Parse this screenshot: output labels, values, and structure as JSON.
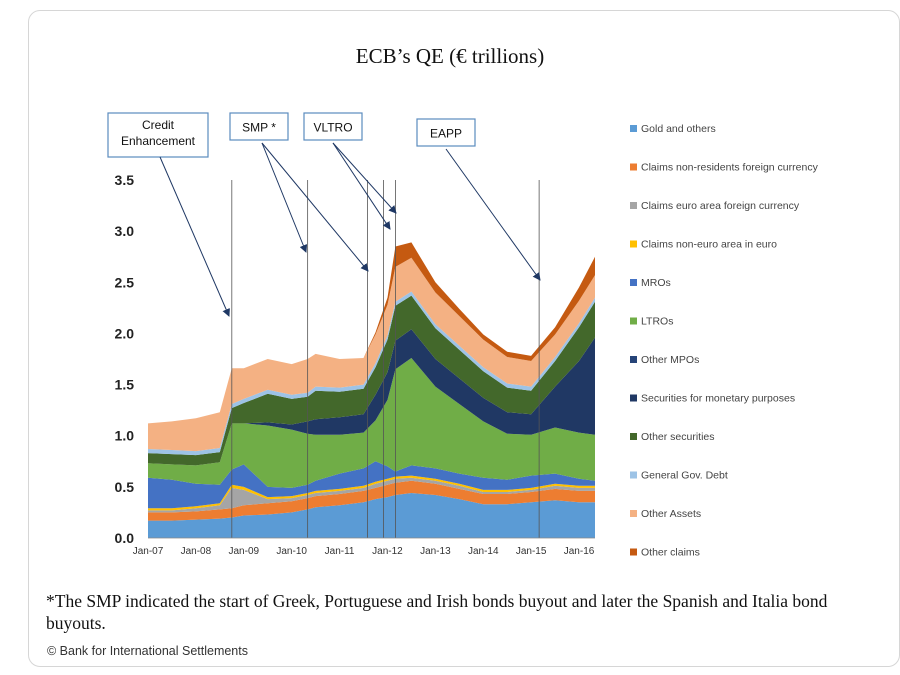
{
  "title": "ECB’s QE (€ trillions)",
  "footnote": "*The SMP indicated the start of Greek, Portuguese and Irish bonds buyout and later the Spanish and Italia bond buyouts.",
  "credit": "© Bank for International Settlements",
  "chart_data": {
    "type": "area",
    "stacked": true,
    "title": "ECB’s QE (€ trillions)",
    "xlabel": "",
    "ylabel": "",
    "ylim": [
      0,
      3.5
    ],
    "xlim": [
      "2007-01",
      "2016-05"
    ],
    "grid": false,
    "legend_position": "right",
    "y_ticks": [
      "0.0",
      "0.5",
      "1.0",
      "1.5",
      "2.0",
      "2.5",
      "3.0",
      "3.5"
    ],
    "x_ticks": [
      "Jan-07",
      "Jan-08",
      "Jan-09",
      "Jan-10",
      "Jan-11",
      "Jan-12",
      "Jan-13",
      "Jan-14",
      "Jan-15",
      "Jan-16"
    ],
    "x": [
      "2007-01",
      "2007-07",
      "2008-01",
      "2008-07",
      "2008-10",
      "2009-01",
      "2009-07",
      "2010-01",
      "2010-05",
      "2010-07",
      "2011-01",
      "2011-07",
      "2011-10",
      "2012-01",
      "2012-03",
      "2012-07",
      "2013-01",
      "2013-07",
      "2014-01",
      "2014-07",
      "2015-01",
      "2015-07",
      "2016-01",
      "2016-05"
    ],
    "series": [
      {
        "name": "Gold and others",
        "color": "#5b9bd5",
        "values": [
          0.17,
          0.17,
          0.18,
          0.19,
          0.2,
          0.22,
          0.23,
          0.25,
          0.28,
          0.3,
          0.32,
          0.35,
          0.38,
          0.4,
          0.42,
          0.44,
          0.42,
          0.38,
          0.33,
          0.33,
          0.35,
          0.37,
          0.35,
          0.35
        ]
      },
      {
        "name": "Claims non-residents foreign currency",
        "color": "#ed7d31",
        "values": [
          0.08,
          0.08,
          0.08,
          0.09,
          0.09,
          0.1,
          0.11,
          0.11,
          0.11,
          0.11,
          0.11,
          0.11,
          0.11,
          0.12,
          0.12,
          0.12,
          0.11,
          0.1,
          0.1,
          0.1,
          0.1,
          0.11,
          0.11,
          0.11
        ]
      },
      {
        "name": "Claims euro area foreign currency",
        "color": "#a5a5a5",
        "values": [
          0.02,
          0.02,
          0.03,
          0.04,
          0.2,
          0.15,
          0.04,
          0.03,
          0.03,
          0.03,
          0.03,
          0.03,
          0.04,
          0.04,
          0.04,
          0.03,
          0.03,
          0.03,
          0.02,
          0.02,
          0.02,
          0.03,
          0.03,
          0.03
        ]
      },
      {
        "name": "Claims non-euro area in euro",
        "color": "#ffc000",
        "values": [
          0.02,
          0.02,
          0.02,
          0.02,
          0.03,
          0.03,
          0.02,
          0.02,
          0.02,
          0.02,
          0.02,
          0.02,
          0.02,
          0.02,
          0.02,
          0.02,
          0.02,
          0.02,
          0.02,
          0.02,
          0.02,
          0.02,
          0.02,
          0.02
        ]
      },
      {
        "name": "MROs",
        "color": "#4472c4",
        "values": [
          0.3,
          0.28,
          0.22,
          0.18,
          0.15,
          0.22,
          0.1,
          0.08,
          0.08,
          0.1,
          0.15,
          0.17,
          0.2,
          0.12,
          0.05,
          0.1,
          0.1,
          0.1,
          0.12,
          0.1,
          0.12,
          0.1,
          0.07,
          0.05
        ]
      },
      {
        "name": "LTROs",
        "color": "#70ad47",
        "values": [
          0.14,
          0.15,
          0.18,
          0.22,
          0.45,
          0.4,
          0.6,
          0.57,
          0.5,
          0.45,
          0.38,
          0.35,
          0.4,
          0.65,
          1.0,
          1.05,
          0.8,
          0.68,
          0.55,
          0.45,
          0.4,
          0.45,
          0.45,
          0.45
        ]
      },
      {
        "name": "Other MPOs",
        "color": "#264478",
        "values": [
          0.0,
          0.0,
          0.0,
          0.0,
          0.0,
          0.0,
          0.0,
          0.0,
          0.0,
          0.0,
          0.0,
          0.0,
          0.0,
          0.0,
          0.0,
          0.0,
          0.0,
          0.0,
          0.0,
          0.0,
          0.0,
          0.0,
          0.0,
          0.0
        ]
      },
      {
        "name": "Securities for monetary purposes",
        "color": "#203864",
        "values": [
          0.0,
          0.0,
          0.0,
          0.0,
          0.0,
          0.0,
          0.03,
          0.05,
          0.12,
          0.15,
          0.17,
          0.18,
          0.25,
          0.27,
          0.28,
          0.28,
          0.27,
          0.25,
          0.23,
          0.21,
          0.2,
          0.4,
          0.7,
          0.95
        ]
      },
      {
        "name": "Other securities",
        "color": "#43682b",
        "values": [
          0.1,
          0.1,
          0.1,
          0.1,
          0.15,
          0.2,
          0.28,
          0.25,
          0.24,
          0.28,
          0.25,
          0.25,
          0.27,
          0.32,
          0.34,
          0.33,
          0.3,
          0.28,
          0.26,
          0.24,
          0.23,
          0.25,
          0.33,
          0.35
        ]
      },
      {
        "name": "General Gov. Debt",
        "color": "#9dc3e6",
        "values": [
          0.04,
          0.04,
          0.04,
          0.04,
          0.04,
          0.04,
          0.04,
          0.04,
          0.04,
          0.04,
          0.04,
          0.04,
          0.04,
          0.04,
          0.04,
          0.04,
          0.04,
          0.04,
          0.04,
          0.04,
          0.04,
          0.04,
          0.04,
          0.04
        ]
      },
      {
        "name": "Other Assets",
        "color": "#f4b183",
        "values": [
          0.25,
          0.28,
          0.32,
          0.35,
          0.35,
          0.3,
          0.3,
          0.3,
          0.33,
          0.32,
          0.28,
          0.26,
          0.28,
          0.3,
          0.34,
          0.33,
          0.31,
          0.29,
          0.27,
          0.26,
          0.25,
          0.22,
          0.22,
          0.22
        ]
      },
      {
        "name": "Other claims",
        "color": "#c55a11",
        "values": [
          0.0,
          0.0,
          0.0,
          0.0,
          0.0,
          0.0,
          0.0,
          0.0,
          0.0,
          0.0,
          0.0,
          0.0,
          0.02,
          0.07,
          0.2,
          0.15,
          0.1,
          0.07,
          0.05,
          0.05,
          0.05,
          0.07,
          0.13,
          0.18
        ]
      }
    ],
    "vertical_lines": [
      "2008-10",
      "2010-05",
      "2011-08",
      "2011-12",
      "2012-03",
      "2015-03"
    ],
    "annotations": [
      {
        "label": "Credit Enhancement",
        "target": "2008-10"
      },
      {
        "label": "SMP *",
        "target": "2010-05"
      },
      {
        "label": "VLTRO",
        "target": "2011-12"
      },
      {
        "label": "EAPP",
        "target": "2015-03"
      }
    ]
  }
}
